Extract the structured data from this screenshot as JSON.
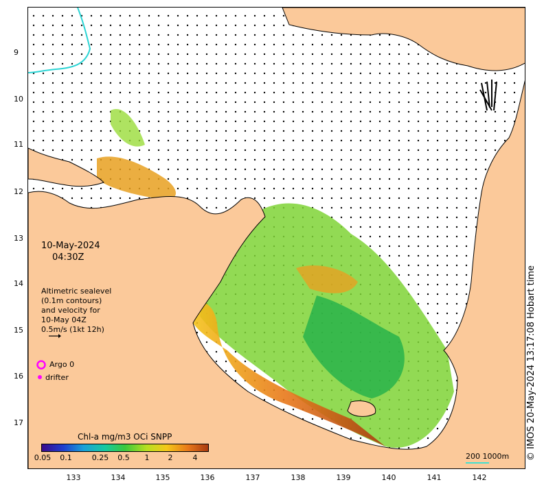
{
  "map": {
    "y_ticks": [
      "9",
      "10",
      "11",
      "12",
      "13",
      "14",
      "15",
      "16",
      "17"
    ],
    "x_ticks": [
      "133",
      "134",
      "135",
      "136",
      "137",
      "138",
      "139",
      "140",
      "141",
      "142"
    ],
    "colors": {
      "land": "#fbc99a",
      "water": "#ffffff",
      "coastline": "#000000",
      "vector": "#000000",
      "boundary": "#2bd4d4",
      "argo": "#ff00ff",
      "drifter": "#ff00ff"
    }
  },
  "annotations": {
    "date": "10-May-2024",
    "time": "04:30Z",
    "altimetry_lines": [
      "Altimetric sealevel",
      "(0.1m contours)",
      "and velocity for",
      "10-May 04Z",
      "0.5m/s (1kt 12h)"
    ],
    "argo_label": "Argo 0",
    "drifter_label": "drifter"
  },
  "colorbar": {
    "title": "Chl-a mg/m3 OCi SNPP",
    "ticks": [
      "0.05",
      "0.1",
      "0.25",
      "0.5",
      "1",
      "2",
      "4"
    ],
    "colors": [
      "#3a0a8c",
      "#1f3fcf",
      "#1aa0d8",
      "#18c9a0",
      "#3cc83c",
      "#b8e020",
      "#f4c81a",
      "#e8781a",
      "#a83a10"
    ]
  },
  "credit": "© IMOS 20-May-2024 13:17:08 Hobart time",
  "scale_bar": {
    "label": "200  1000m"
  }
}
